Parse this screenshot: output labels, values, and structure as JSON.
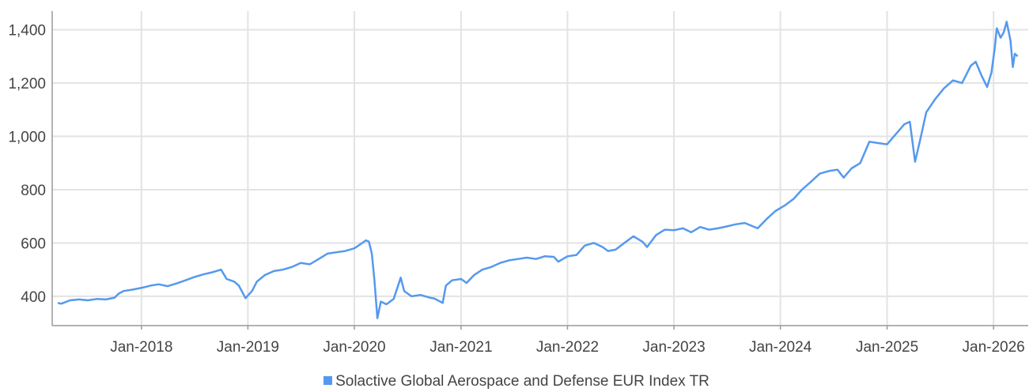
{
  "chart_data": {
    "type": "line",
    "title": "",
    "xlabel": "",
    "ylabel": "",
    "ylim": [
      290,
      1470
    ],
    "xlim": [
      "2017-03-01",
      "2026-04-30"
    ],
    "grid": true,
    "legend_position": "bottom-center",
    "y_ticks": [
      {
        "value": 400,
        "label": "400"
      },
      {
        "value": 600,
        "label": "600"
      },
      {
        "value": 800,
        "label": "800"
      },
      {
        "value": 1000,
        "label": "1,000"
      },
      {
        "value": 1200,
        "label": "1,200"
      },
      {
        "value": 1400,
        "label": "1,400"
      }
    ],
    "x_ticks": [
      {
        "date": "2018-01-01",
        "label": "Jan-2018"
      },
      {
        "date": "2019-01-01",
        "label": "Jan-2019"
      },
      {
        "date": "2020-01-01",
        "label": "Jan-2020"
      },
      {
        "date": "2021-01-01",
        "label": "Jan-2021"
      },
      {
        "date": "2022-01-01",
        "label": "Jan-2022"
      },
      {
        "date": "2023-01-01",
        "label": "Jan-2023"
      },
      {
        "date": "2024-01-01",
        "label": "Jan-2024"
      },
      {
        "date": "2025-01-01",
        "label": "Jan-2025"
      },
      {
        "date": "2026-01-01",
        "label": "Jan-2026"
      }
    ],
    "series": [
      {
        "name": "Solactive Global Aerospace and Defense EUR Index TR",
        "color": "#5599ee",
        "points": [
          [
            "2017-03-20",
            375
          ],
          [
            "2017-04-01",
            372
          ],
          [
            "2017-05-01",
            385
          ],
          [
            "2017-06-01",
            388
          ],
          [
            "2017-07-01",
            385
          ],
          [
            "2017-08-01",
            390
          ],
          [
            "2017-09-01",
            388
          ],
          [
            "2017-10-01",
            395
          ],
          [
            "2017-10-15",
            410
          ],
          [
            "2017-11-01",
            420
          ],
          [
            "2017-12-01",
            425
          ],
          [
            "2018-01-15",
            435
          ],
          [
            "2018-02-01",
            440
          ],
          [
            "2018-03-01",
            445
          ],
          [
            "2018-04-01",
            438
          ],
          [
            "2018-05-01",
            448
          ],
          [
            "2018-06-01",
            460
          ],
          [
            "2018-07-01",
            472
          ],
          [
            "2018-08-01",
            482
          ],
          [
            "2018-09-01",
            490
          ],
          [
            "2018-10-01",
            500
          ],
          [
            "2018-10-20",
            465
          ],
          [
            "2018-11-15",
            455
          ],
          [
            "2018-12-01",
            440
          ],
          [
            "2018-12-24",
            393
          ],
          [
            "2019-01-15",
            420
          ],
          [
            "2019-02-01",
            455
          ],
          [
            "2019-03-01",
            480
          ],
          [
            "2019-04-01",
            495
          ],
          [
            "2019-05-01",
            500
          ],
          [
            "2019-06-01",
            510
          ],
          [
            "2019-07-01",
            525
          ],
          [
            "2019-08-01",
            520
          ],
          [
            "2019-09-01",
            540
          ],
          [
            "2019-10-01",
            560
          ],
          [
            "2019-11-01",
            565
          ],
          [
            "2019-12-01",
            570
          ],
          [
            "2020-01-01",
            580
          ],
          [
            "2020-01-15",
            590
          ],
          [
            "2020-02-10",
            610
          ],
          [
            "2020-02-20",
            605
          ],
          [
            "2020-03-01",
            560
          ],
          [
            "2020-03-10",
            460
          ],
          [
            "2020-03-20",
            318
          ],
          [
            "2020-04-01",
            380
          ],
          [
            "2020-04-20",
            370
          ],
          [
            "2020-05-15",
            390
          ],
          [
            "2020-06-08",
            470
          ],
          [
            "2020-06-20",
            420
          ],
          [
            "2020-07-15",
            400
          ],
          [
            "2020-08-15",
            405
          ],
          [
            "2020-09-15",
            395
          ],
          [
            "2020-10-01",
            392
          ],
          [
            "2020-10-30",
            375
          ],
          [
            "2020-11-10",
            440
          ],
          [
            "2020-12-01",
            460
          ],
          [
            "2021-01-01",
            465
          ],
          [
            "2021-01-20",
            450
          ],
          [
            "2021-02-15",
            480
          ],
          [
            "2021-03-15",
            500
          ],
          [
            "2021-04-15",
            510
          ],
          [
            "2021-05-15",
            525
          ],
          [
            "2021-06-15",
            535
          ],
          [
            "2021-07-15",
            540
          ],
          [
            "2021-08-15",
            545
          ],
          [
            "2021-09-15",
            540
          ],
          [
            "2021-10-15",
            550
          ],
          [
            "2021-11-15",
            548
          ],
          [
            "2021-12-01",
            530
          ],
          [
            "2022-01-01",
            550
          ],
          [
            "2022-02-01",
            555
          ],
          [
            "2022-03-01",
            590
          ],
          [
            "2022-04-01",
            600
          ],
          [
            "2022-05-01",
            585
          ],
          [
            "2022-05-20",
            570
          ],
          [
            "2022-06-15",
            575
          ],
          [
            "2022-07-15",
            600
          ],
          [
            "2022-08-15",
            625
          ],
          [
            "2022-09-15",
            605
          ],
          [
            "2022-10-01",
            585
          ],
          [
            "2022-11-01",
            630
          ],
          [
            "2022-12-01",
            650
          ],
          [
            "2023-01-01",
            648
          ],
          [
            "2023-02-01",
            655
          ],
          [
            "2023-03-01",
            640
          ],
          [
            "2023-04-01",
            660
          ],
          [
            "2023-05-01",
            650
          ],
          [
            "2023-06-01",
            655
          ],
          [
            "2023-07-01",
            662
          ],
          [
            "2023-08-01",
            670
          ],
          [
            "2023-09-01",
            675
          ],
          [
            "2023-10-15",
            655
          ],
          [
            "2023-11-15",
            690
          ],
          [
            "2023-12-15",
            720
          ],
          [
            "2024-01-15",
            740
          ],
          [
            "2024-02-15",
            765
          ],
          [
            "2024-03-15",
            800
          ],
          [
            "2024-04-15",
            830
          ],
          [
            "2024-05-15",
            860
          ],
          [
            "2024-06-15",
            870
          ],
          [
            "2024-07-15",
            875
          ],
          [
            "2024-08-05",
            845
          ],
          [
            "2024-09-01",
            880
          ],
          [
            "2024-10-01",
            900
          ],
          [
            "2024-11-01",
            980
          ],
          [
            "2024-12-01",
            975
          ],
          [
            "2025-01-01",
            970
          ],
          [
            "2025-02-01",
            1010
          ],
          [
            "2025-03-01",
            1045
          ],
          [
            "2025-03-20",
            1055
          ],
          [
            "2025-04-07",
            905
          ],
          [
            "2025-04-25",
            990
          ],
          [
            "2025-05-15",
            1090
          ],
          [
            "2025-06-15",
            1140
          ],
          [
            "2025-07-15",
            1180
          ],
          [
            "2025-08-15",
            1210
          ],
          [
            "2025-09-15",
            1200
          ],
          [
            "2025-10-15",
            1265
          ],
          [
            "2025-11-01",
            1280
          ],
          [
            "2025-11-20",
            1230
          ],
          [
            "2025-12-10",
            1185
          ],
          [
            "2025-12-25",
            1240
          ],
          [
            "2026-01-05",
            1330
          ],
          [
            "2026-01-12",
            1405
          ],
          [
            "2026-01-25",
            1370
          ],
          [
            "2026-02-05",
            1390
          ],
          [
            "2026-02-15",
            1430
          ],
          [
            "2026-02-28",
            1360
          ],
          [
            "2026-03-08",
            1260
          ],
          [
            "2026-03-15",
            1310
          ],
          [
            "2026-03-25",
            1300
          ]
        ]
      }
    ]
  }
}
